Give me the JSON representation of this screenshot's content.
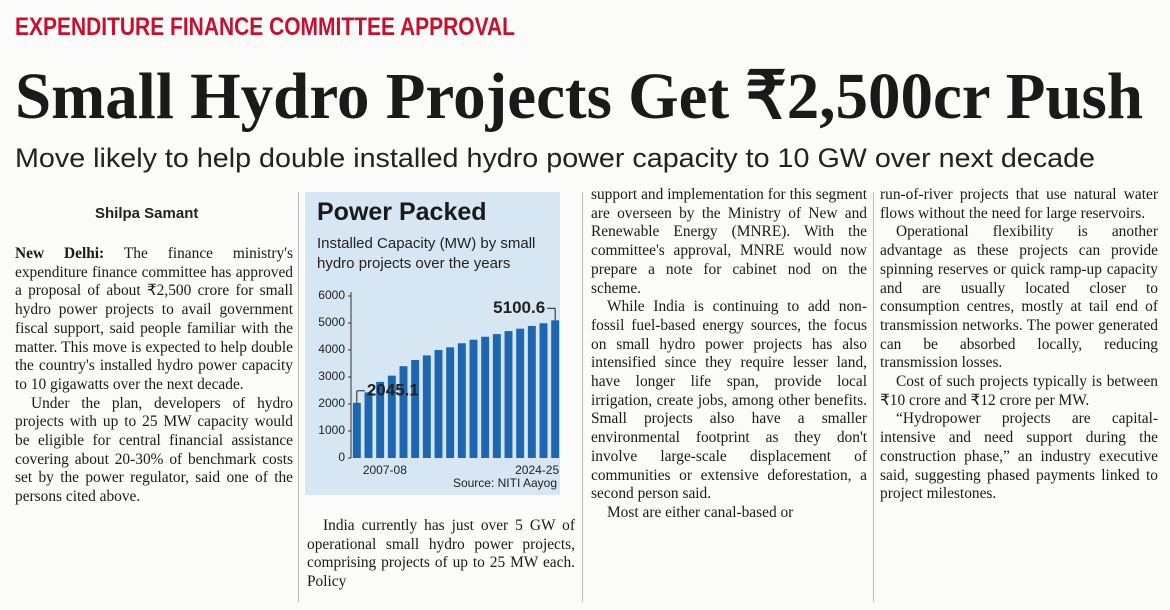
{
  "header": {
    "kicker": "EXPENDITURE FINANCE COMMITTEE APPROVAL",
    "headline": "Small Hydro Projects Get ₹2,500cr Push",
    "subhead": "Move likely to help double installed hydro power capacity to 10 GW over next decade"
  },
  "byline": "Shilpa Samant",
  "dateline": "New Delhi:",
  "columns": [
    {
      "paragraphs": [
        "The finance ministry's expenditure finance committee has approved a proposal of about ₹2,500 crore for small hydro power projects to avail government fiscal support, said people familiar with the matter. This move is expected to help double the country's installed hydro power capacity to 10 gigawatts over the next decade.",
        "Under the plan, developers of hydro projects with up to 25 MW capacity would be eligible for central financial assistance covering about 20-30% of benchmark costs set by the power regulator, said one of the persons cited above."
      ]
    },
    {
      "paragraphs": [
        "India currently has just over 5 GW of operational small hydro power projects, comprising projects of up to 25 MW each. Policy"
      ]
    },
    {
      "paragraphs": [
        "support and implementation for this segment are overseen by the Ministry of New and Renewable Energy (MNRE). With the committee's approval, MNRE would now prepare a note for cabinet nod on the scheme.",
        "While India is continuing to add non-fossil fuel-based energy sources, the focus on small hydro power projects has also intensified since they require lesser land, have longer life span, provide local irrigation, create jobs, among other benefits. Small projects also have a smaller environmental footprint as they don't involve large-scale displacement of communities or extensive deforestation, a second person said.",
        "Most are either canal-based or"
      ]
    },
    {
      "paragraphs": [
        "run-of-river projects that use natural water flows without the need for large reservoirs.",
        "Operational flexibility is another advantage as these projects can provide spinning reserves or quick ramp-up capacity and are usually located closer to consumption centres, mostly at tail end of transmission networks. The power generated can be absorbed locally, reducing transmission losses.",
        "Cost of such projects typically is between ₹10 crore and ₹12 crore per MW.",
        "“Hydropower projects are capital-intensive and need support during the construction phase,” an industry executive said, suggesting phased payments linked to project milestones."
      ]
    }
  ],
  "chart_data": {
    "type": "bar",
    "title": "Power Packed",
    "subtitle": "Installed Capacity (MW) by small hydro projects over the years",
    "source": "Source: NITI Aayog",
    "categories": [
      "2007-08",
      null,
      null,
      null,
      null,
      null,
      null,
      null,
      null,
      null,
      null,
      null,
      null,
      null,
      null,
      null,
      null,
      "2024-25"
    ],
    "values": [
      2045.1,
      2430,
      2820,
      3050,
      3400,
      3630,
      3800,
      4000,
      4100,
      4250,
      4380,
      4490,
      4590,
      4700,
      4790,
      4890,
      4990,
      5100.6
    ],
    "labeled_points": [
      0,
      17
    ],
    "color": "#1f66b0",
    "ylim": [
      0,
      6000
    ],
    "yticks": [
      0,
      1000,
      2000,
      3000,
      4000,
      5000,
      6000
    ],
    "grid": false
  }
}
